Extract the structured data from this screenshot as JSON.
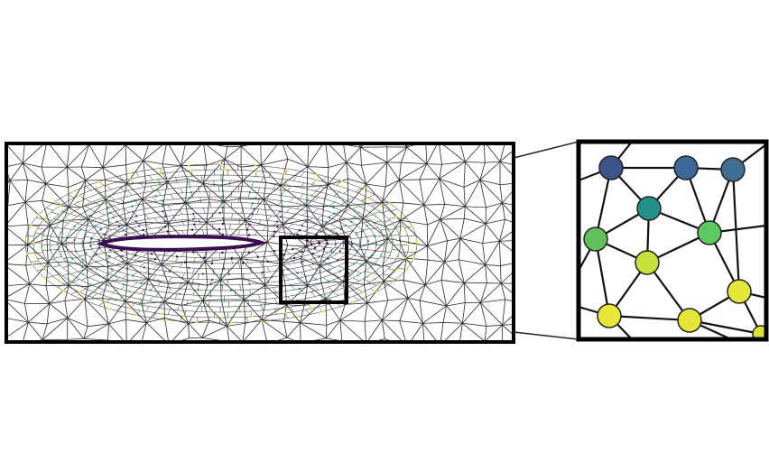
{
  "figure": {
    "subject": "mesh-graph-airfoil",
    "colormap": [
      "#440154",
      "#3b528b",
      "#21918c",
      "#5ec962",
      "#fde725"
    ],
    "mesh_edge_color": "#2a2a2a",
    "frame_color": "#000000",
    "background": "#ffffff"
  },
  "airfoil": {
    "fill": "#ffffff",
    "outline": "#3a0e4f"
  },
  "inset": {
    "nodes": [
      {
        "id": "n1",
        "color": "#3b528b"
      },
      {
        "id": "n2",
        "color": "#3b6896"
      },
      {
        "id": "n3",
        "color": "#3e6e94"
      },
      {
        "id": "n4",
        "color": "#24908c"
      },
      {
        "id": "n5",
        "color": "#62c15c"
      },
      {
        "id": "n6",
        "color": "#5ec962"
      },
      {
        "id": "n7",
        "color": "#c6e03c"
      },
      {
        "id": "n8",
        "color": "#e3e83a"
      },
      {
        "id": "n9",
        "color": "#e8e636"
      },
      {
        "id": "n10",
        "color": "#e5e539"
      },
      {
        "id": "n11",
        "color": "#d9e43b"
      }
    ]
  }
}
